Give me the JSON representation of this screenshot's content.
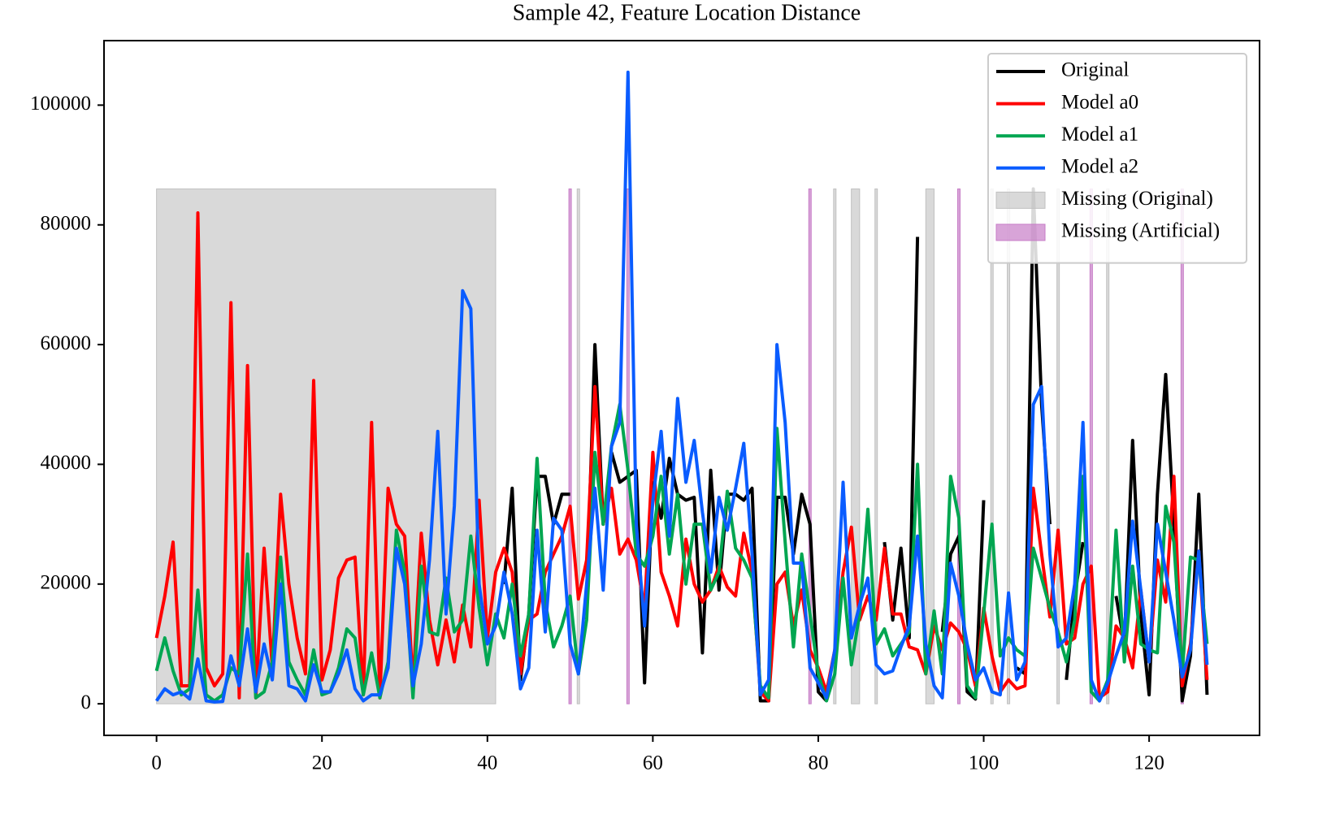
{
  "chart_data": {
    "type": "line",
    "title": "Sample 42, Feature Location Distance",
    "x": [
      0,
      1,
      2,
      3,
      4,
      5,
      6,
      7,
      8,
      9,
      10,
      11,
      12,
      13,
      14,
      15,
      16,
      17,
      18,
      19,
      20,
      21,
      22,
      23,
      24,
      25,
      26,
      27,
      28,
      29,
      30,
      31,
      32,
      33,
      34,
      35,
      36,
      37,
      38,
      39,
      40,
      41,
      42,
      43,
      44,
      45,
      46,
      47,
      48,
      49,
      50,
      51,
      52,
      53,
      54,
      55,
      56,
      57,
      58,
      59,
      60,
      61,
      62,
      63,
      64,
      65,
      66,
      67,
      68,
      69,
      70,
      71,
      72,
      73,
      74,
      75,
      76,
      77,
      78,
      79,
      80,
      81,
      82,
      83,
      84,
      85,
      86,
      87,
      88,
      89,
      90,
      91,
      92,
      93,
      94,
      95,
      96,
      97,
      98,
      99,
      100,
      101,
      102,
      103,
      104,
      105,
      106,
      107,
      108,
      109,
      110,
      111,
      112,
      113,
      114,
      115,
      116,
      117,
      118,
      119,
      120,
      121,
      122,
      123,
      124,
      125,
      126,
      127
    ],
    "series": [
      {
        "name": "Original",
        "color": "#000000",
        "values": [
          null,
          null,
          null,
          null,
          null,
          null,
          null,
          null,
          null,
          null,
          null,
          null,
          null,
          null,
          null,
          null,
          null,
          null,
          null,
          null,
          null,
          null,
          null,
          null,
          null,
          null,
          null,
          null,
          null,
          null,
          null,
          null,
          null,
          null,
          null,
          null,
          null,
          null,
          null,
          null,
          null,
          null,
          20000,
          36000,
          4000,
          15000,
          38000,
          38000,
          30000,
          35000,
          35000,
          null,
          18000,
          60000,
          30000,
          42000,
          37000,
          38000,
          39000,
          3500,
          37000,
          31000,
          41000,
          35000,
          34000,
          34500,
          8500,
          39000,
          19000,
          35000,
          35000,
          34000,
          36000,
          500,
          500,
          34500,
          34500,
          25000,
          35000,
          30000,
          2000,
          500,
          null,
          20000,
          null,
          null,
          18000,
          null,
          27000,
          14000,
          26000,
          11000,
          78000,
          null,
          null,
          12000,
          25000,
          28000,
          2000,
          800,
          34000,
          null,
          9000,
          null,
          6000,
          5000,
          86000,
          50000,
          30000,
          null,
          4000,
          18000,
          27000,
          null,
          500,
          null,
          18000,
          10000,
          44000,
          15000,
          1500,
          35000,
          55000,
          30000,
          500,
          8000,
          35000,
          1500
        ]
      },
      {
        "name": "Model a0",
        "color": "#ff0000",
        "values": [
          11000,
          18000,
          27000,
          3000,
          3000,
          82000,
          6000,
          3000,
          5000,
          67000,
          1000,
          56500,
          1000,
          26000,
          6000,
          35000,
          20000,
          11000,
          5000,
          54000,
          4000,
          9000,
          21000,
          24000,
          24500,
          1500,
          47000,
          1000,
          36000,
          30000,
          28000,
          3000,
          28500,
          14000,
          6500,
          14000,
          7000,
          16500,
          9500,
          34000,
          11000,
          22000,
          26000,
          22000,
          5000,
          14000,
          15000,
          22000,
          25000,
          28000,
          33000,
          17500,
          24000,
          53000,
          30000,
          36000,
          25000,
          27500,
          24000,
          16000,
          42000,
          22000,
          18000,
          13000,
          27500,
          20000,
          17000,
          19000,
          23000,
          19500,
          18000,
          28500,
          22000,
          2000,
          500,
          20000,
          22000,
          13000,
          19000,
          9000,
          6000,
          2000,
          9000,
          22000,
          29500,
          14000,
          18000,
          14000,
          26000,
          15000,
          15000,
          9500,
          9000,
          5000,
          13000,
          9000,
          13500,
          12000,
          9000,
          3000,
          16000,
          8000,
          2000,
          4000,
          2500,
          3000,
          36000,
          25000,
          14500,
          29000,
          10000,
          11000,
          20000,
          23000,
          1000,
          2000,
          13000,
          11000,
          6000,
          19000,
          7000,
          24000,
          17000,
          38000,
          3000,
          10000,
          25500,
          4000
        ]
      },
      {
        "name": "Model a1",
        "color": "#00a651",
        "values": [
          5500,
          11000,
          5500,
          1500,
          2500,
          19000,
          1500,
          500,
          1500,
          6000,
          5000,
          25000,
          1000,
          2000,
          7000,
          24500,
          7000,
          4000,
          1500,
          9000,
          1500,
          2000,
          6000,
          12500,
          11000,
          1500,
          8500,
          1000,
          7000,
          29000,
          22000,
          1000,
          23000,
          12000,
          11500,
          21000,
          12000,
          14000,
          28000,
          16000,
          6500,
          15000,
          11000,
          20000,
          8000,
          15000,
          41000,
          17000,
          9500,
          13000,
          18000,
          5000,
          14000,
          42000,
          30000,
          43000,
          50000,
          39000,
          25000,
          23000,
          28000,
          38000,
          25000,
          35000,
          20000,
          30000,
          30000,
          19000,
          22000,
          35500,
          26000,
          24000,
          21000,
          3000,
          1000,
          46000,
          27000,
          9500,
          25000,
          15000,
          5000,
          500,
          5000,
          21000,
          6500,
          15000,
          32500,
          10000,
          12500,
          8000,
          10000,
          12000,
          40000,
          5000,
          15500,
          5000,
          38000,
          31000,
          3000,
          1000,
          15000,
          30000,
          8000,
          11000,
          9000,
          8000,
          26000,
          21000,
          16000,
          12000,
          7000,
          14000,
          38000,
          2000,
          500,
          4000,
          29000,
          7000,
          23000,
          10000,
          9000,
          8500,
          33000,
          27000,
          5000,
          24500,
          24000,
          10000
        ]
      },
      {
        "name": "Model a2",
        "color": "#0a5cff",
        "values": [
          500,
          2500,
          1500,
          2000,
          800,
          7500,
          500,
          300,
          400,
          8000,
          3000,
          12500,
          2000,
          10000,
          4000,
          20000,
          3000,
          2500,
          500,
          6500,
          2000,
          2000,
          5000,
          9000,
          2500,
          500,
          1500,
          1500,
          6000,
          26000,
          20000,
          3000,
          10000,
          24000,
          45500,
          15000,
          33000,
          69000,
          66000,
          20000,
          10000,
          13000,
          22000,
          15000,
          2500,
          6000,
          29000,
          12000,
          31000,
          29000,
          10000,
          5000,
          20000,
          36000,
          19000,
          43000,
          47000,
          105500,
          30000,
          13000,
          34000,
          45500,
          28000,
          51000,
          37000,
          44000,
          32000,
          22000,
          34500,
          29000,
          36000,
          43500,
          25000,
          1500,
          4000,
          60000,
          47000,
          23500,
          23500,
          6000,
          3500,
          1000,
          9000,
          37000,
          11000,
          16500,
          21000,
          6500,
          5000,
          5500,
          9500,
          13000,
          28000,
          10000,
          3000,
          1000,
          23500,
          18000,
          10000,
          4000,
          6000,
          2000,
          1500,
          18500,
          4000,
          7000,
          50000,
          53000,
          25000,
          9500,
          11000,
          20000,
          47000,
          4000,
          500,
          3500,
          8000,
          12000,
          30500,
          19000,
          7000,
          30000,
          22000,
          14000,
          4500,
          9000,
          25500,
          6500
        ]
      }
    ],
    "spans": [
      {
        "name": "Missing (Original)",
        "color": "#c0c0c0",
        "top": 86000,
        "ranges": [
          [
            0,
            41
          ],
          [
            51,
            51
          ],
          [
            82,
            82
          ],
          [
            84,
            85
          ],
          [
            87,
            87
          ],
          [
            93,
            94
          ],
          [
            101,
            101
          ],
          [
            103,
            103
          ],
          [
            109,
            109
          ],
          [
            115,
            115
          ]
        ]
      },
      {
        "name": "Missing (Artificial)",
        "color": "#c77dc7",
        "top": 86000,
        "ranges": [
          [
            50,
            50
          ],
          [
            57,
            57
          ],
          [
            79,
            79
          ],
          [
            97,
            97
          ],
          [
            113,
            113
          ],
          [
            124,
            124
          ]
        ]
      }
    ],
    "xlim": [
      -6.35,
      133.35
    ],
    "ylim": [
      -5275,
      110775
    ],
    "xticks": [
      0,
      20,
      40,
      60,
      80,
      100,
      120
    ],
    "yticks": [
      0,
      20000,
      40000,
      60000,
      80000,
      100000
    ],
    "legend": "upper right"
  }
}
